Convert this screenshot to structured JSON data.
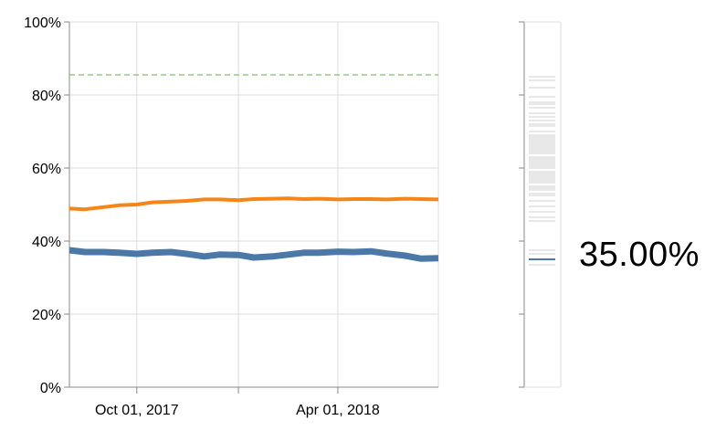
{
  "chart_data": {
    "type": "line",
    "x_axis": {
      "ticks": [
        "Oct 01, 2017",
        "Apr 01, 2018"
      ],
      "range": [
        "2017-08-01",
        "2018-07-01"
      ]
    },
    "y_axis": {
      "ticks": [
        "0%",
        "20%",
        "40%",
        "60%",
        "80%",
        "100%"
      ],
      "ylim": [
        0,
        100
      ]
    },
    "grid": true,
    "colors": {
      "orange": "#f58518",
      "blue": "#4c78a8",
      "target": "#7fbf6f",
      "strip": "#d9d9d9"
    },
    "target_line": {
      "value": 85.5
    },
    "x": [
      "2017-08-01",
      "2017-08-15",
      "2017-09-01",
      "2017-09-15",
      "2017-10-01",
      "2017-10-15",
      "2017-11-01",
      "2017-11-15",
      "2017-12-01",
      "2017-12-15",
      "2018-01-01",
      "2018-01-15",
      "2018-02-01",
      "2018-02-15",
      "2018-03-01",
      "2018-03-15",
      "2018-04-01",
      "2018-04-15",
      "2018-05-01",
      "2018-05-15",
      "2018-06-01",
      "2018-06-15",
      "2018-07-01"
    ],
    "series": [
      {
        "color": "orange",
        "values": [
          48.9,
          48.7,
          49.3,
          49.8,
          50.0,
          50.6,
          50.8,
          51.0,
          51.4,
          51.4,
          51.2,
          51.5,
          51.6,
          51.7,
          51.5,
          51.6,
          51.4,
          51.5,
          51.5,
          51.4,
          51.6,
          51.5,
          51.4
        ]
      },
      {
        "color": "blue",
        "values": [
          37.5,
          37.0,
          37.0,
          36.8,
          36.5,
          36.8,
          37.0,
          36.5,
          35.8,
          36.3,
          36.2,
          35.5,
          35.8,
          36.3,
          36.8,
          36.8,
          37.1,
          37.0,
          37.2,
          36.6,
          36.0,
          35.2,
          35.3
        ]
      }
    ],
    "strip": {
      "values_gray": [
        85,
        84,
        82,
        79.5,
        78,
        77.5,
        76.5,
        75,
        74,
        73,
        72,
        71.5,
        70,
        69,
        68.5,
        68,
        67.5,
        67,
        66.5,
        66,
        65.5,
        65,
        64.5,
        64,
        63,
        62.5,
        62,
        61.5,
        61,
        60.5,
        60,
        59,
        58.5,
        58,
        57.5,
        57,
        56.5,
        56,
        55,
        54.5,
        54,
        53,
        52.5,
        51,
        49.5,
        48,
        46.5,
        45.5,
        37.5,
        36.5,
        33.5
      ],
      "highlight": 35.0,
      "highlight_label": "35.00%"
    }
  }
}
